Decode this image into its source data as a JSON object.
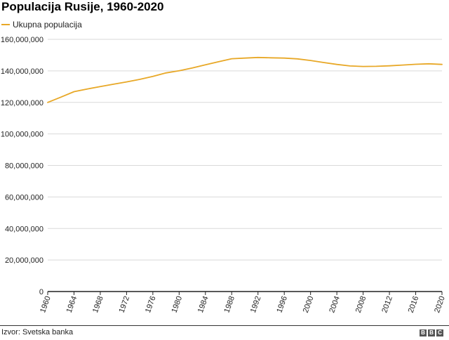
{
  "chart_data": {
    "type": "line",
    "title": "Populacija Rusije, 1960-2020",
    "xlabel": "",
    "ylabel": "",
    "x": [
      1960,
      1962,
      1964,
      1966,
      1968,
      1970,
      1972,
      1974,
      1976,
      1978,
      1980,
      1982,
      1984,
      1986,
      1988,
      1990,
      1992,
      1994,
      1996,
      1998,
      2000,
      2002,
      2004,
      2006,
      2008,
      2010,
      2012,
      2014,
      2016,
      2018,
      2020
    ],
    "series": [
      {
        "name": "Ukupna populacija",
        "color": "#e8a827",
        "values": [
          120000000,
          123300000,
          126800000,
          128500000,
          130000000,
          131500000,
          133000000,
          134600000,
          136500000,
          138700000,
          140100000,
          141800000,
          143800000,
          145800000,
          147700000,
          148100000,
          148500000,
          148300000,
          148100000,
          147600000,
          146600000,
          145300000,
          144100000,
          143100000,
          142800000,
          142900000,
          143200000,
          143700000,
          144200000,
          144500000,
          144100000
        ]
      }
    ],
    "ylim": [
      0,
      160000000
    ],
    "yticks": [
      "0",
      "20,000,000",
      "40,000,000",
      "60,000,000",
      "80,000,000",
      "100,000,000",
      "120,000,000",
      "140,000,000",
      "160,000,000"
    ],
    "xticks": [
      "1960",
      "1964",
      "1968",
      "1972",
      "1976",
      "1980",
      "1984",
      "1988",
      "1992",
      "1996",
      "2000",
      "2004",
      "2008",
      "2012",
      "2016",
      "2020"
    ],
    "grid": true,
    "legend": "top-left"
  },
  "source": "Izvor: Svetska banka",
  "logo": [
    "B",
    "B",
    "C"
  ]
}
